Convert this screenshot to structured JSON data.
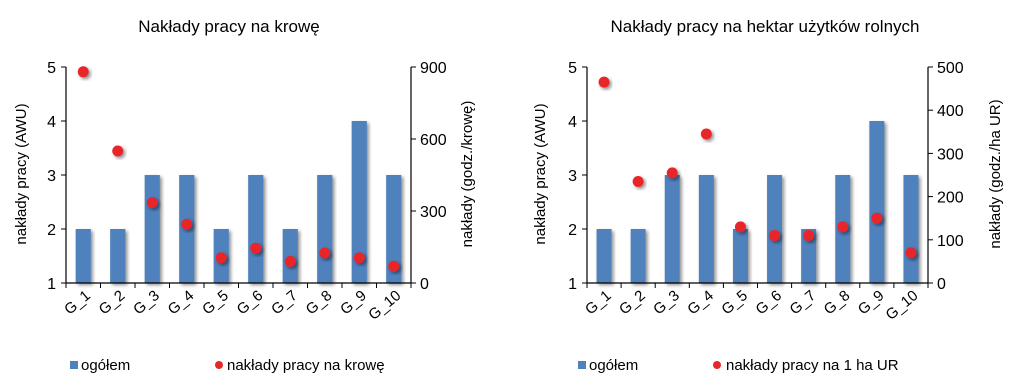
{
  "chart_data": [
    {
      "type": "bar",
      "title": "Nakłady pracy na krowę",
      "categories": [
        "G_1",
        "G_2",
        "G_3",
        "G_4",
        "G_5",
        "G_6",
        "G_7",
        "G_8",
        "G_9",
        "G_10"
      ],
      "series": [
        {
          "name": "ogółem",
          "type": "bar",
          "axis": "left",
          "color": "#4F81BD",
          "values": [
            2,
            2,
            3,
            3,
            2,
            3,
            2,
            3,
            4,
            3
          ]
        },
        {
          "name": "nakłady pracy na krowę",
          "type": "scatter",
          "axis": "right",
          "color": "#E8272B",
          "values": [
            880,
            550,
            335,
            245,
            105,
            145,
            90,
            125,
            105,
            70
          ]
        }
      ],
      "ylabel": "nakłady pracy (AWU)",
      "ylim": [
        1,
        5
      ],
      "yticks": [
        1,
        2,
        3,
        4,
        5
      ],
      "y2label": "nakłady (godz./krowę)",
      "y2lim": [
        0,
        900
      ],
      "y2ticks": [
        0,
        300,
        600,
        900
      ],
      "grid": false,
      "legend": "bottom"
    },
    {
      "type": "bar",
      "title": "Nakłady pracy na hektar użytków rolnych",
      "categories": [
        "G_1",
        "G_2",
        "G_3",
        "G_4",
        "G_5",
        "G_6",
        "G_7",
        "G_8",
        "G_9",
        "G_10"
      ],
      "series": [
        {
          "name": "ogółem",
          "type": "bar",
          "axis": "left",
          "color": "#4F81BD",
          "values": [
            2,
            2,
            3,
            3,
            2,
            3,
            2,
            3,
            4,
            3
          ]
        },
        {
          "name": "nakłady pracy na 1 ha UR",
          "type": "scatter",
          "axis": "right",
          "color": "#E8272B",
          "values": [
            465,
            235,
            255,
            345,
            130,
            110,
            110,
            130,
            150,
            70
          ]
        }
      ],
      "ylabel": "nakłady pracy (AWU)",
      "ylim": [
        1,
        5
      ],
      "yticks": [
        1,
        2,
        3,
        4,
        5
      ],
      "y2label": "nakłady (godz./ha UR)",
      "y2lim": [
        0,
        500
      ],
      "y2ticks": [
        0,
        100,
        200,
        300,
        400,
        500
      ],
      "grid": false,
      "legend": "bottom"
    }
  ]
}
